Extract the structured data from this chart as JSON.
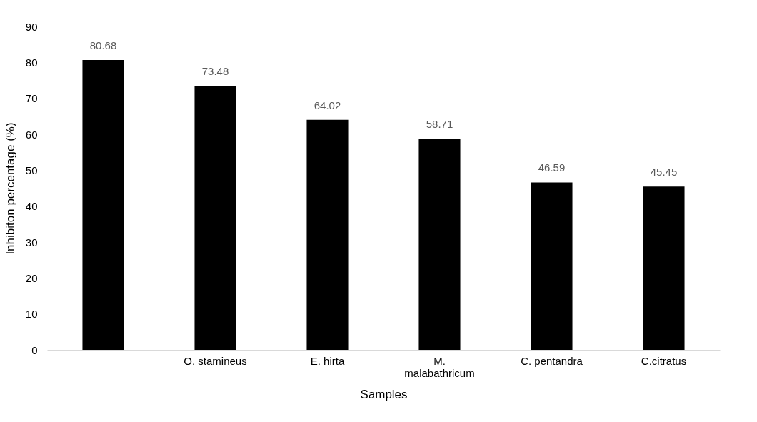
{
  "chart_data": {
    "type": "bar",
    "xlabel": "Samples",
    "ylabel": "Inhibiton percentage (%)",
    "categories": [
      null,
      "O. stamineus",
      "E. hirta",
      "M. malabathricum",
      "C. pentandra",
      "C.citratus"
    ],
    "values": [
      80.68,
      73.48,
      64.02,
      58.71,
      46.59,
      45.45
    ],
    "color": "#000000",
    "ylim": [
      0,
      90
    ],
    "yticks": [
      0,
      10,
      20,
      30,
      40,
      50,
      60,
      70,
      80,
      90
    ],
    "grid": false,
    "data_labels": true
  }
}
